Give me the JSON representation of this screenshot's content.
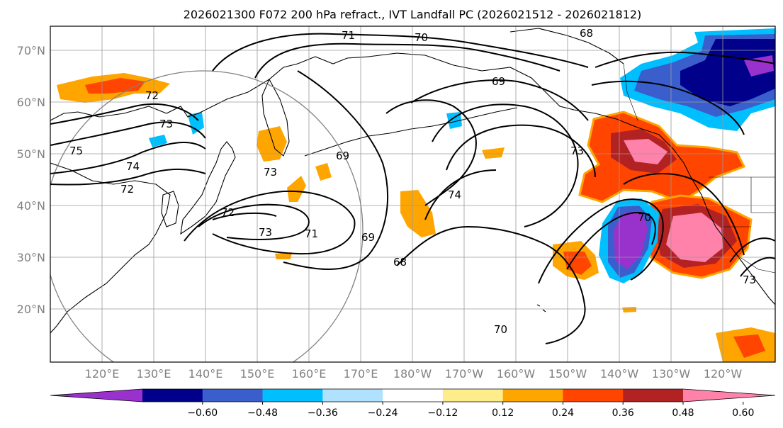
{
  "title": "2026021300 F072 200 hPa refract., IVT Landfall PC (2026021512 - 2026021812)",
  "latitude_labels": [
    "70°N",
    "60°N",
    "50°N",
    "40°N",
    "30°N",
    "20°N"
  ],
  "longitude_labels": [
    "120°E",
    "130°E",
    "140°E",
    "150°E",
    "160°E",
    "170°E",
    "180°W",
    "170°W",
    "160°W",
    "150°W",
    "140°W",
    "130°W",
    "120°W"
  ],
  "map_extent": {
    "lon_min": 110,
    "lon_max": 250,
    "lat_min": 10,
    "lat_max": 75
  },
  "contour_labels": [
    "71",
    "70",
    "68",
    "69",
    "72",
    "73",
    "75",
    "74",
    "72",
    "73",
    "72",
    "69",
    "71",
    "73",
    "69",
    "68",
    "74",
    "73",
    "70",
    "70",
    "73"
  ],
  "colorbar": {
    "ticks": [
      "−0.60",
      "−0.48",
      "−0.36",
      "−0.24",
      "−0.12",
      "0.12",
      "0.24",
      "0.36",
      "0.48",
      "0.60"
    ],
    "colors": [
      "#9932cc",
      "#00008b",
      "#3a5fcd",
      "#00bfff",
      "#b0e2ff",
      "#ffffff",
      "#ffec8b",
      "#ffa500",
      "#ff4500",
      "#b22222",
      "#ff82ab"
    ]
  },
  "colors": {
    "positive_high": "#ff82ab",
    "positive_mid": "#ff4500",
    "positive_low": "#ffa500",
    "negative_high": "#9932cc",
    "negative_mid": "#00008b",
    "negative_low": "#00bfff",
    "gridline": "#9a9a9a",
    "tick_label": "#808080"
  }
}
